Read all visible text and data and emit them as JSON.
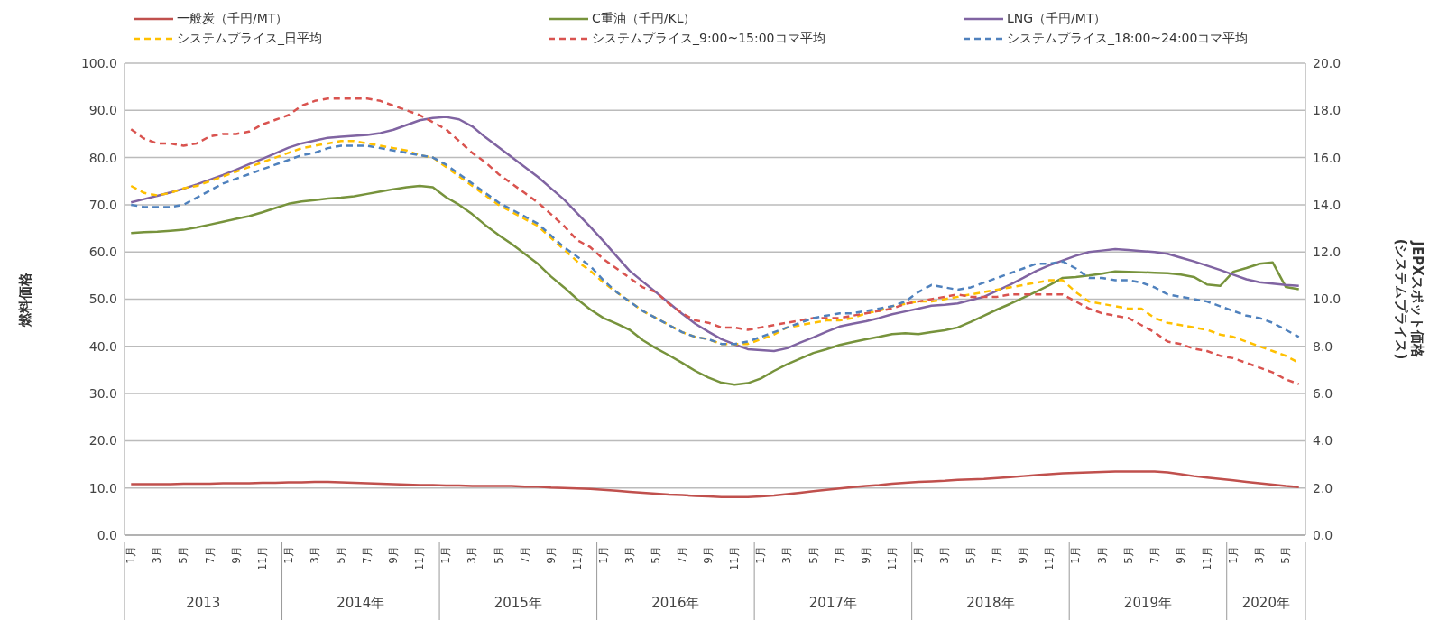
{
  "chart_data": {
    "type": "line",
    "ylabel": "燃料価格",
    "y2label": "JEPXスポット価格\n(システムプライス)",
    "categories": [
      "1月",
      null,
      "3月",
      null,
      "5月",
      null,
      "7月",
      null,
      "9月",
      null,
      "11月",
      null,
      "1月",
      null,
      "3月",
      null,
      "5月",
      null,
      "7月",
      null,
      "9月",
      null,
      "11月",
      null,
      "1月",
      null,
      "3月",
      null,
      "5月",
      null,
      "7月",
      null,
      "9月",
      null,
      "11月",
      null,
      "1月",
      null,
      "3月",
      null,
      "5月",
      null,
      "7月",
      null,
      "9月",
      null,
      "11月",
      null,
      "1月",
      null,
      "3月",
      null,
      "5月",
      null,
      "7月",
      null,
      "9月",
      null,
      "11月",
      null,
      "1月",
      null,
      "3月",
      null,
      "5月",
      null,
      "7月",
      null,
      "9月",
      null,
      "11月",
      null,
      "1月",
      null,
      "3月",
      null,
      "5月",
      null,
      "7月",
      null,
      "9月",
      null,
      "11月",
      null,
      "1月",
      null,
      "3月",
      null,
      "5月",
      null
    ],
    "annotations": [
      "2013",
      "2014年",
      "2015年",
      "2016年",
      "2017年",
      "2018年",
      "2019年",
      "2020年"
    ],
    "series": [
      {
        "name": "一般炭（千円/MT）",
        "color": "#c0504d",
        "line_style": "solid",
        "values": [
          10.8,
          10.8,
          10.8,
          10.8,
          10.9,
          10.9,
          10.9,
          11,
          11,
          11,
          11.1,
          11.1,
          11.2,
          11.2,
          11.3,
          11.3,
          11.2,
          11.1,
          11,
          10.9,
          10.8,
          10.7,
          10.6,
          10.6,
          10.5,
          10.5,
          10.4,
          10.4,
          10.4,
          10.4,
          10.3,
          10.3,
          10.1,
          10,
          9.9,
          9.8,
          9.6,
          9.4,
          9.2,
          9,
          8.8,
          8.6,
          8.5,
          8.3,
          8.2,
          8.1,
          8.1,
          8.1,
          8.2,
          8.4,
          8.7,
          9,
          9.3,
          9.6,
          9.9,
          10.2,
          10.4,
          10.6,
          10.9,
          11.1,
          11.3,
          11.4,
          11.5,
          11.7,
          11.8,
          11.9,
          12.1,
          12.3,
          12.5,
          12.7,
          12.9,
          13.1,
          13.2,
          13.3,
          13.4,
          13.5,
          13.5,
          13.5,
          13.5,
          13.3,
          12.9,
          12.5,
          12.2,
          11.9,
          11.6,
          11.3,
          11,
          10.7,
          10.4,
          10.2
        ]
      },
      {
        "name": "C重油（千円/KL）",
        "color": "#77933c",
        "line_style": "solid",
        "values": [
          64,
          64.2,
          64.3,
          64.5,
          64.7,
          65.2,
          65.8,
          66.4,
          67,
          67.6,
          68.4,
          69.3,
          70.2,
          70.7,
          71,
          71.3,
          71.5,
          71.8,
          72.3,
          72.8,
          73.3,
          73.7,
          74,
          73.7,
          71.6,
          70,
          68,
          65.7,
          63.6,
          61.7,
          59.6,
          57.5,
          54.8,
          52.5,
          50,
          47.8,
          46,
          44.8,
          43.5,
          41.3,
          39.6,
          38.1,
          36.5,
          34.8,
          33.4,
          32.3,
          31.9,
          32.2,
          33.2,
          34.8,
          36.2,
          37.4,
          38.6,
          39.4,
          40.3,
          40.9,
          41.5,
          42,
          42.6,
          42.8,
          42.6,
          43,
          43.4,
          44,
          45.2,
          46.5,
          47.8,
          49,
          50.3,
          51.6,
          53,
          54.5,
          54.7,
          55,
          55.4,
          55.9,
          55.8,
          55.7,
          55.6,
          55.5,
          55.2,
          54.7,
          53.1,
          52.8,
          55.8,
          56.6,
          57.5,
          57.8,
          52.6,
          52.1
        ]
      },
      {
        "name": "LNG（千円/MT）",
        "color": "#8064a2",
        "line_style": "solid",
        "values": [
          70.5,
          71.2,
          71.9,
          72.6,
          73.4,
          74.3,
          75.3,
          76.3,
          77.4,
          78.6,
          79.7,
          80.9,
          82.1,
          83,
          83.6,
          84.2,
          84.4,
          84.6,
          84.8,
          85.2,
          85.9,
          86.9,
          87.9,
          88.4,
          88.6,
          88.1,
          86.6,
          84.3,
          82.2,
          80.1,
          78,
          75.9,
          73.5,
          71.1,
          68.2,
          65.3,
          62.3,
          59.1,
          56,
          53.7,
          51.5,
          49.2,
          46.9,
          44.8,
          43.1,
          41.5,
          40.4,
          39.4,
          39.2,
          39,
          39.6,
          40.8,
          41.9,
          43.1,
          44.2,
          44.8,
          45.3,
          46,
          46.8,
          47.4,
          48,
          48.6,
          48.8,
          49.1,
          49.8,
          50.5,
          51.8,
          53.1,
          54.5,
          56,
          57.2,
          58.2,
          59.2,
          60,
          60.3,
          60.6,
          60.4,
          60.2,
          60,
          59.6,
          58.8,
          58,
          57.1,
          56.2,
          55.2,
          54.2,
          53.6,
          53.3,
          53,
          52.8
        ]
      },
      {
        "name": "システムプライス_日平均",
        "color": "#ffc000",
        "line_style": "dashed",
        "axis": "y2",
        "values": [
          14.8,
          14.5,
          14.4,
          14.5,
          14.7,
          14.8,
          15,
          15.2,
          15.4,
          15.6,
          15.8,
          16,
          16.2,
          16.4,
          16.5,
          16.6,
          16.7,
          16.7,
          16.6,
          16.5,
          16.4,
          16.3,
          16.1,
          16,
          15.6,
          15.2,
          14.8,
          14.4,
          14,
          13.7,
          13.4,
          13.1,
          12.6,
          12.1,
          11.6,
          11.2,
          10.7,
          10.3,
          9.9,
          9.5,
          9.2,
          8.9,
          8.6,
          8.4,
          8.3,
          8.1,
          8.1,
          8.1,
          8.3,
          8.5,
          8.8,
          8.9,
          9,
          9.1,
          9.1,
          9.2,
          9.4,
          9.5,
          9.7,
          9.8,
          9.9,
          9.9,
          10,
          10.1,
          10.2,
          10.3,
          10.4,
          10.5,
          10.6,
          10.7,
          10.8,
          10.8,
          10.3,
          9.9,
          9.8,
          9.7,
          9.6,
          9.6,
          9.2,
          9,
          8.9,
          8.8,
          8.7,
          8.5,
          8.4,
          8.2,
          8,
          7.8,
          7.6,
          7.3
        ]
      },
      {
        "name": "システムプライス_9:00~15:00コマ平均",
        "color": "#d9534f",
        "line_style": "dashed",
        "axis": "y2",
        "values": [
          17.2,
          16.8,
          16.6,
          16.6,
          16.5,
          16.6,
          16.9,
          17,
          17,
          17.1,
          17.4,
          17.6,
          17.8,
          18.2,
          18.4,
          18.5,
          18.5,
          18.5,
          18.5,
          18.4,
          18.2,
          18,
          17.8,
          17.5,
          17.2,
          16.7,
          16.2,
          15.8,
          15.3,
          14.9,
          14.5,
          14.1,
          13.6,
          13.1,
          12.5,
          12.2,
          11.7,
          11.3,
          10.9,
          10.5,
          10.3,
          9.8,
          9.4,
          9.1,
          9,
          8.8,
          8.8,
          8.7,
          8.8,
          8.9,
          9,
          9.1,
          9.2,
          9.2,
          9.2,
          9.3,
          9.4,
          9.5,
          9.6,
          9.8,
          9.9,
          10,
          10.1,
          10.2,
          10.1,
          10.1,
          10.1,
          10.2,
          10.2,
          10.2,
          10.2,
          10.2,
          9.9,
          9.6,
          9.4,
          9.3,
          9.2,
          8.9,
          8.6,
          8.2,
          8.1,
          7.9,
          7.8,
          7.6,
          7.5,
          7.3,
          7.1,
          6.9,
          6.6,
          6.4
        ]
      },
      {
        "name": "システムプライス_18:00~24:00コマ平均",
        "color": "#4f81bd",
        "line_style": "dashed",
        "axis": "y2",
        "values": [
          14,
          13.9,
          13.9,
          13.9,
          14,
          14.3,
          14.6,
          14.9,
          15.1,
          15.3,
          15.5,
          15.7,
          15.9,
          16.1,
          16.2,
          16.4,
          16.5,
          16.5,
          16.5,
          16.4,
          16.3,
          16.2,
          16.1,
          16,
          15.7,
          15.3,
          14.9,
          14.5,
          14.1,
          13.8,
          13.5,
          13.2,
          12.7,
          12.2,
          11.8,
          11.4,
          10.8,
          10.3,
          9.9,
          9.5,
          9.2,
          8.9,
          8.6,
          8.4,
          8.3,
          8.1,
          8.1,
          8.2,
          8.4,
          8.6,
          8.8,
          9,
          9.2,
          9.3,
          9.4,
          9.4,
          9.5,
          9.6,
          9.7,
          9.9,
          10.3,
          10.6,
          10.5,
          10.4,
          10.5,
          10.7,
          10.9,
          11.1,
          11.3,
          11.5,
          11.5,
          11.6,
          11.3,
          10.9,
          10.9,
          10.8,
          10.8,
          10.7,
          10.5,
          10.2,
          10.1,
          10,
          9.9,
          9.7,
          9.5,
          9.3,
          9.2,
          9,
          8.7,
          8.4
        ]
      }
    ],
    "ylim": [
      0,
      100
    ],
    "yticks": [
      {
        "value": 0,
        "label": "0.0"
      },
      {
        "value": 10,
        "label": "10.0"
      },
      {
        "value": 20,
        "label": "20.0"
      },
      {
        "value": 30,
        "label": "30.0"
      },
      {
        "value": 40,
        "label": "40.0"
      },
      {
        "value": 50,
        "label": "50.0"
      },
      {
        "value": 60,
        "label": "60.0"
      },
      {
        "value": 70,
        "label": "70.0"
      },
      {
        "value": 80,
        "label": "80.0"
      },
      {
        "value": 90,
        "label": "90.0"
      },
      {
        "value": 100,
        "label": "100.0"
      }
    ],
    "y2lim": [
      0,
      20
    ],
    "y2ticks": [
      {
        "value": 0,
        "label": "0.0"
      },
      {
        "value": 2,
        "label": "2.0"
      },
      {
        "value": 4,
        "label": "4.0"
      },
      {
        "value": 6,
        "label": "6.0"
      },
      {
        "value": 8,
        "label": "8.0"
      },
      {
        "value": 10,
        "label": "10.0"
      },
      {
        "value": 12,
        "label": "12.0"
      },
      {
        "value": 14,
        "label": "14.0"
      },
      {
        "value": 16,
        "label": "16.0"
      },
      {
        "value": 18,
        "label": "18.0"
      },
      {
        "value": 20,
        "label": "20.0"
      }
    ],
    "grid": "y",
    "legend": "top"
  }
}
